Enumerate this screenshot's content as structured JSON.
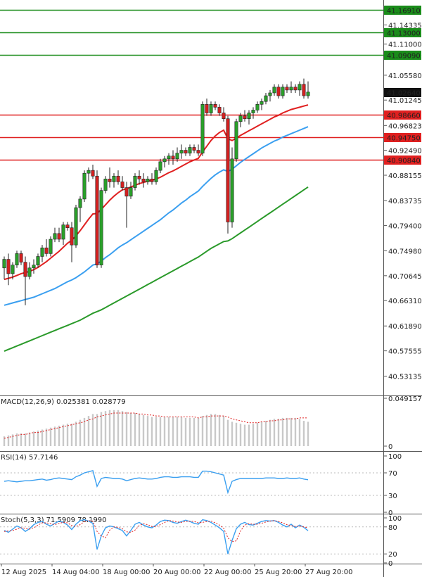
{
  "chart_data": [
    {
      "type": "candlestick",
      "panel": "price",
      "y_ticks": [
        "41.16910",
        "41.14335",
        "41.11000",
        "41.09090",
        "41.05580",
        "41.01245",
        "40.96823",
        "40.92490",
        "40.88155",
        "40.83735",
        "40.79400",
        "40.74980",
        "40.70645",
        "40.66310",
        "40.61890",
        "40.57555",
        "40.53135"
      ],
      "ylim": [
        40.515,
        41.177
      ],
      "current_price": "41.02640",
      "levels": [
        {
          "label": "41.16910",
          "color": "#1a8c1a"
        },
        {
          "label": "41.13000",
          "color": "#1a8c1a"
        },
        {
          "label": "41.09090",
          "color": "#1a8c1a"
        },
        {
          "label": "40.98660",
          "color": "#e02020"
        },
        {
          "label": "40.94750",
          "color": "#e02020"
        },
        {
          "label": "40.90840",
          "color": "#e02020"
        }
      ],
      "candles": [
        [
          40.72,
          40.74,
          40.7,
          40.735
        ],
        [
          40.735,
          40.745,
          40.69,
          40.71
        ],
        [
          40.71,
          40.73,
          40.7,
          40.725
        ],
        [
          40.725,
          40.75,
          40.72,
          40.745
        ],
        [
          40.745,
          40.75,
          40.725,
          40.73
        ],
        [
          40.73,
          40.74,
          40.655,
          40.705
        ],
        [
          40.705,
          40.73,
          40.7,
          40.72
        ],
        [
          40.72,
          40.735,
          40.71,
          40.725
        ],
        [
          40.725,
          40.745,
          40.72,
          40.74
        ],
        [
          40.74,
          40.76,
          40.73,
          40.755
        ],
        [
          40.755,
          40.77,
          40.74,
          40.745
        ],
        [
          40.745,
          40.775,
          40.74,
          40.77
        ],
        [
          40.77,
          40.79,
          40.765,
          40.78
        ],
        [
          40.78,
          40.79,
          40.765,
          40.77
        ],
        [
          40.77,
          40.8,
          40.76,
          40.795
        ],
        [
          40.795,
          40.8,
          40.785,
          40.79
        ],
        [
          40.79,
          40.8,
          40.73,
          40.76
        ],
        [
          40.76,
          40.83,
          40.755,
          40.825
        ],
        [
          40.825,
          40.845,
          40.8,
          40.84
        ],
        [
          40.84,
          40.89,
          40.835,
          40.885
        ],
        [
          40.885,
          40.895,
          40.87,
          40.89
        ],
        [
          40.89,
          40.9,
          40.875,
          40.88
        ],
        [
          40.88,
          40.89,
          40.72,
          40.725
        ],
        [
          40.725,
          40.86,
          40.72,
          40.855
        ],
        [
          40.855,
          40.88,
          40.85,
          40.875
        ],
        [
          40.875,
          40.895,
          40.86,
          40.87
        ],
        [
          40.87,
          40.885,
          40.86,
          40.88
        ],
        [
          40.88,
          40.89,
          40.865,
          40.87
        ],
        [
          40.87,
          40.88,
          40.855,
          40.86
        ],
        [
          40.86,
          40.87,
          40.79,
          40.845
        ],
        [
          40.845,
          40.87,
          40.84,
          40.86
        ],
        [
          40.86,
          40.885,
          40.855,
          40.88
        ],
        [
          40.88,
          40.89,
          40.865,
          40.875
        ],
        [
          40.875,
          40.885,
          40.86,
          40.87
        ],
        [
          40.87,
          40.88,
          40.865,
          40.875
        ],
        [
          40.875,
          40.885,
          40.865,
          40.87
        ],
        [
          40.87,
          40.895,
          40.865,
          40.89
        ],
        [
          40.89,
          40.91,
          40.885,
          40.905
        ],
        [
          40.905,
          40.915,
          40.895,
          40.91
        ],
        [
          40.91,
          40.92,
          40.9,
          40.915
        ],
        [
          40.915,
          40.925,
          40.9,
          40.91
        ],
        [
          40.91,
          40.93,
          40.905,
          40.92
        ],
        [
          40.92,
          40.935,
          40.91,
          40.925
        ],
        [
          40.925,
          40.93,
          40.915,
          40.92
        ],
        [
          40.92,
          40.935,
          40.915,
          40.93
        ],
        [
          40.93,
          40.935,
          40.92,
          40.925
        ],
        [
          40.925,
          40.935,
          40.915,
          40.92
        ],
        [
          40.92,
          41.01,
          40.915,
          41.005
        ],
        [
          41.005,
          41.015,
          40.985,
          40.99
        ],
        [
          40.99,
          41.01,
          40.985,
          41.005
        ],
        [
          41.005,
          41.01,
          40.995,
          41.0
        ],
        [
          41.0,
          41.005,
          40.985,
          40.99
        ],
        [
          40.99,
          41.0,
          40.975,
          40.98
        ],
        [
          40.98,
          40.985,
          40.78,
          40.8
        ],
        [
          40.8,
          40.93,
          40.79,
          40.91
        ],
        [
          40.91,
          40.98,
          40.905,
          40.975
        ],
        [
          40.975,
          40.99,
          40.965,
          40.985
        ],
        [
          40.985,
          40.995,
          40.975,
          40.98
        ],
        [
          40.98,
          40.995,
          40.97,
          40.99
        ],
        [
          40.99,
          41.0,
          40.98,
          40.995
        ],
        [
          40.995,
          41.01,
          40.99,
          41.005
        ],
        [
          41.005,
          41.015,
          40.995,
          41.01
        ],
        [
          41.01,
          41.025,
          41.005,
          41.02
        ],
        [
          41.02,
          41.03,
          41.01,
          41.025
        ],
        [
          41.025,
          41.04,
          41.02,
          41.035
        ],
        [
          41.035,
          41.04,
          41.015,
          41.02
        ],
        [
          41.02,
          41.04,
          41.015,
          41.035
        ],
        [
          41.035,
          41.04,
          41.025,
          41.03
        ],
        [
          41.03,
          41.045,
          41.025,
          41.035
        ],
        [
          41.035,
          41.04,
          41.025,
          41.03
        ],
        [
          41.03,
          41.045,
          41.02,
          41.04
        ],
        [
          41.04,
          41.05,
          41.015,
          41.02
        ],
        [
          41.02,
          41.045,
          41.015,
          41.0264
        ]
      ],
      "ma_red": [
        40.7,
        40.702,
        40.704,
        40.707,
        40.71,
        40.712,
        40.714,
        40.717,
        40.721,
        40.726,
        40.731,
        40.737,
        40.743,
        40.749,
        40.756,
        40.763,
        40.768,
        40.776,
        40.785,
        40.795,
        40.805,
        40.814,
        40.815,
        40.822,
        40.83,
        40.838,
        40.845,
        40.851,
        40.856,
        40.858,
        40.861,
        40.864,
        40.867,
        40.869,
        40.871,
        40.873,
        40.875,
        40.878,
        40.882,
        40.886,
        40.889,
        40.893,
        40.897,
        40.901,
        40.905,
        40.908,
        40.911,
        40.922,
        40.932,
        40.942,
        40.95,
        40.956,
        40.96,
        40.945,
        40.942,
        40.946,
        40.951,
        40.955,
        40.959,
        40.963,
        40.967,
        40.971,
        40.975,
        40.979,
        40.983,
        40.986,
        40.99,
        40.993,
        40.996,
        40.998,
        41.0,
        41.002,
        41.004
      ],
      "ma_blue": [
        40.655,
        40.657,
        40.659,
        40.661,
        40.663,
        40.665,
        40.667,
        40.669,
        40.672,
        40.675,
        40.678,
        40.681,
        40.684,
        40.688,
        40.692,
        40.696,
        40.699,
        40.703,
        40.708,
        40.713,
        40.719,
        40.725,
        40.727,
        40.732,
        40.738,
        40.743,
        40.749,
        40.755,
        40.76,
        40.764,
        40.769,
        40.774,
        40.779,
        40.784,
        40.789,
        40.794,
        40.799,
        40.804,
        40.81,
        40.816,
        40.821,
        40.827,
        40.833,
        40.838,
        40.844,
        40.849,
        40.854,
        40.862,
        40.869,
        40.876,
        40.882,
        40.887,
        40.891,
        40.888,
        40.892,
        40.898,
        40.904,
        40.909,
        40.914,
        40.919,
        40.924,
        40.929,
        40.933,
        40.937,
        40.941,
        40.944,
        40.948,
        40.951,
        40.954,
        40.957,
        40.96,
        40.963,
        40.966
      ],
      "ma_green": [
        40.575,
        40.578,
        40.581,
        40.584,
        40.587,
        40.59,
        40.593,
        40.596,
        40.599,
        40.602,
        40.605,
        40.608,
        40.611,
        40.614,
        40.617,
        40.62,
        40.623,
        40.626,
        40.629,
        40.633,
        40.637,
        40.641,
        40.644,
        40.647,
        40.651,
        40.655,
        40.659,
        40.663,
        40.667,
        40.671,
        40.675,
        40.679,
        40.683,
        40.687,
        40.691,
        40.695,
        40.699,
        40.703,
        40.707,
        40.711,
        40.715,
        40.719,
        40.723,
        40.727,
        40.731,
        40.735,
        40.739,
        40.744,
        40.749,
        40.754,
        40.758,
        40.762,
        40.766,
        40.767,
        40.771,
        40.776,
        40.781,
        40.786,
        40.791,
        40.796,
        40.801,
        40.806,
        40.811,
        40.816,
        40.821,
        40.826,
        40.831,
        40.836,
        40.841,
        40.846,
        40.851,
        40.856,
        40.861
      ]
    },
    {
      "type": "bar",
      "panel": "macd",
      "label": "MACD(12,26,9) 0.025381 0.028779",
      "y_ticks": [
        "0.049157",
        "0"
      ],
      "ylim": [
        0,
        0.049157
      ],
      "values": [
        0.01,
        0.011,
        0.012,
        0.013,
        0.013,
        0.013,
        0.014,
        0.015,
        0.016,
        0.017,
        0.018,
        0.019,
        0.02,
        0.021,
        0.022,
        0.023,
        0.023,
        0.025,
        0.027,
        0.029,
        0.031,
        0.033,
        0.033,
        0.035,
        0.036,
        0.037,
        0.037,
        0.037,
        0.036,
        0.035,
        0.034,
        0.034,
        0.033,
        0.032,
        0.031,
        0.03,
        0.03,
        0.03,
        0.03,
        0.03,
        0.03,
        0.03,
        0.03,
        0.029,
        0.029,
        0.029,
        0.029,
        0.031,
        0.032,
        0.033,
        0.033,
        0.032,
        0.031,
        0.027,
        0.025,
        0.024,
        0.023,
        0.022,
        0.022,
        0.023,
        0.024,
        0.025,
        0.026,
        0.027,
        0.028,
        0.028,
        0.029,
        0.029,
        0.029,
        0.029,
        0.028,
        0.026,
        0.025
      ],
      "signal": [
        0.008,
        0.009,
        0.01,
        0.011,
        0.012,
        0.012,
        0.013,
        0.014,
        0.014,
        0.015,
        0.016,
        0.017,
        0.018,
        0.019,
        0.02,
        0.021,
        0.022,
        0.023,
        0.024,
        0.025,
        0.027,
        0.028,
        0.03,
        0.031,
        0.032,
        0.033,
        0.034,
        0.034,
        0.034,
        0.034,
        0.034,
        0.034,
        0.033,
        0.033,
        0.032,
        0.032,
        0.031,
        0.031,
        0.03,
        0.03,
        0.03,
        0.03,
        0.03,
        0.03,
        0.03,
        0.03,
        0.029,
        0.03,
        0.03,
        0.031,
        0.031,
        0.031,
        0.031,
        0.03,
        0.028,
        0.027,
        0.026,
        0.025,
        0.024,
        0.024,
        0.024,
        0.025,
        0.025,
        0.026,
        0.026,
        0.027,
        0.027,
        0.028,
        0.028,
        0.028,
        0.029,
        0.029,
        0.029
      ]
    },
    {
      "type": "line",
      "panel": "rsi",
      "label": "RSI(14) 57.7146",
      "y_ticks": [
        "100",
        "70",
        "30",
        "0"
      ],
      "ylim": [
        0,
        100
      ],
      "values": [
        55,
        56,
        55,
        54,
        55,
        56,
        56,
        57,
        58,
        59,
        57,
        58,
        60,
        61,
        60,
        59,
        58,
        63,
        66,
        70,
        72,
        74,
        46,
        60,
        62,
        61,
        60,
        60,
        59,
        56,
        58,
        60,
        61,
        60,
        59,
        59,
        60,
        62,
        63,
        63,
        62,
        62,
        63,
        63,
        63,
        62,
        62,
        73,
        73,
        72,
        70,
        68,
        66,
        35,
        55,
        58,
        60,
        60,
        60,
        60,
        60,
        60,
        61,
        61,
        61,
        60,
        60,
        61,
        60,
        60,
        61,
        59,
        57.7
      ]
    },
    {
      "type": "line",
      "panel": "stoch",
      "label": "Stoch(5,3,3) 71.5909 78.1990",
      "y_ticks": [
        "100",
        "80",
        "20",
        "0"
      ],
      "ylim": [
        0,
        100
      ],
      "main": [
        72,
        68,
        75,
        82,
        78,
        70,
        76,
        85,
        90,
        92,
        86,
        82,
        88,
        93,
        90,
        84,
        74,
        86,
        94,
        96,
        93,
        88,
        30,
        60,
        78,
        82,
        80,
        76,
        72,
        60,
        72,
        86,
        90,
        84,
        80,
        78,
        84,
        92,
        95,
        94,
        90,
        88,
        92,
        95,
        92,
        88,
        86,
        96,
        94,
        90,
        84,
        78,
        70,
        20,
        50,
        76,
        86,
        90,
        85,
        84,
        88,
        92,
        94,
        93,
        94,
        90,
        84,
        80,
        86,
        78,
        84,
        79,
        71.59
      ],
      "signal": [
        70,
        71,
        72,
        75,
        78,
        77,
        75,
        78,
        84,
        89,
        89,
        87,
        85,
        88,
        90,
        89,
        83,
        81,
        85,
        92,
        94,
        93,
        70,
        60,
        56,
        73,
        80,
        79,
        76,
        69,
        68,
        73,
        83,
        87,
        85,
        81,
        81,
        85,
        90,
        94,
        93,
        91,
        90,
        92,
        93,
        92,
        89,
        90,
        92,
        93,
        89,
        84,
        77,
        56,
        47,
        49,
        71,
        84,
        87,
        86,
        86,
        88,
        91,
        93,
        94,
        92,
        89,
        85,
        83,
        81,
        82,
        80,
        78.199
      ]
    }
  ],
  "time_axis": {
    "labels": [
      "12 Aug 2025",
      "14 Aug 04:00",
      "18 Aug 00:00",
      "20 Aug 00:00",
      "22 Aug 00:00",
      "25 Aug 20:00",
      "27 Aug 20:00"
    ]
  },
  "colors": {
    "bull": "#2aa02a",
    "bear": "#d42020",
    "resistance": "#1a8c1a",
    "support": "#e02020",
    "ma_red": "#e02020",
    "ma_blue": "#3a9ff0",
    "ma_green": "#2a9a2a",
    "rsi": "#3a9ff0",
    "stoch_main": "#3a9ff0",
    "stoch_signal": "#e02020",
    "macd_hist": "#c8c8c8",
    "macd_signal": "#e02020"
  }
}
